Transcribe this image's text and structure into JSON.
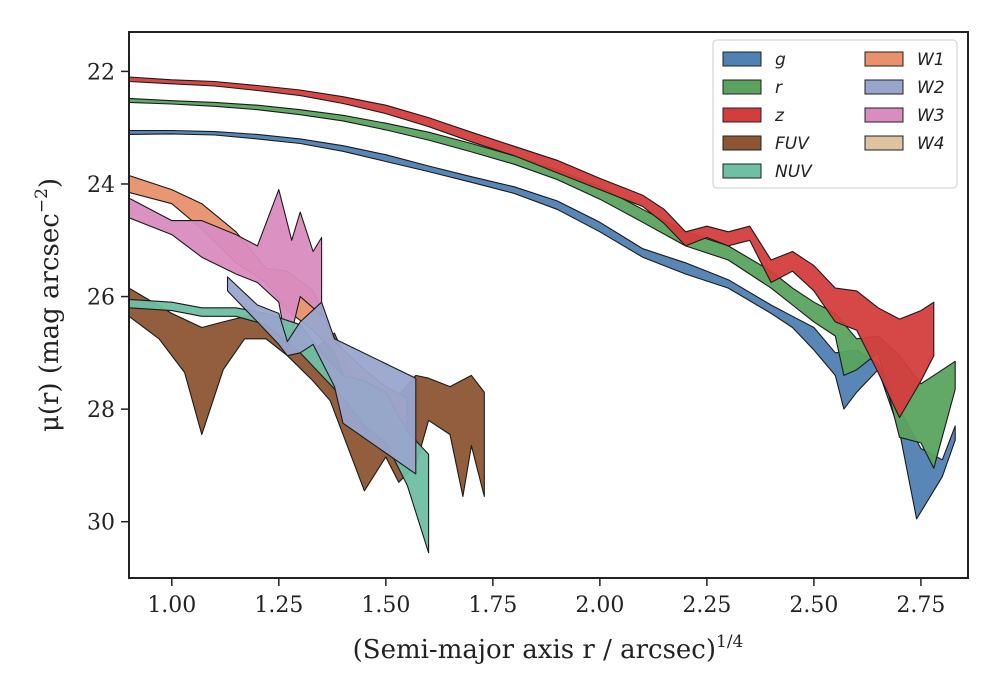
{
  "chart_data": {
    "type": "area",
    "title": "",
    "xlabel": "(Semi-major axis r / arcsec)",
    "xlabel_exponent": "1/4",
    "ylabel": "μ(r) (mag arcsec",
    "ylabel_exponent": "−2",
    "ylabel_close": ")",
    "xlim": [
      0.9,
      2.86
    ],
    "ylim": [
      31.0,
      21.3
    ],
    "y_inverted": true,
    "xticks": [
      1.0,
      1.25,
      1.5,
      1.75,
      2.0,
      2.25,
      2.5,
      2.75
    ],
    "xtick_labels": [
      "1.00",
      "1.25",
      "1.50",
      "1.75",
      "2.00",
      "2.25",
      "2.50",
      "2.75"
    ],
    "yticks": [
      22,
      24,
      26,
      28,
      30
    ],
    "ytick_labels": [
      "22",
      "24",
      "26",
      "28",
      "30"
    ],
    "grid": false,
    "legend_position": "top-right",
    "legend_columns": 2,
    "series": [
      {
        "name": "FUV",
        "color": "#8c5533",
        "upper": [
          [
            0.9,
            25.85
          ],
          [
            1.0,
            26.3
          ],
          [
            1.07,
            26.55
          ],
          [
            1.12,
            26.45
          ],
          [
            1.2,
            26.3
          ],
          [
            1.27,
            26.5
          ],
          [
            1.33,
            26.95
          ],
          [
            1.38,
            26.65
          ],
          [
            1.45,
            27.9
          ],
          [
            1.5,
            27.6
          ],
          [
            1.53,
            27.75
          ],
          [
            1.57,
            27.4
          ],
          [
            1.6,
            27.45
          ],
          [
            1.65,
            27.6
          ],
          [
            1.7,
            27.4
          ],
          [
            1.73,
            27.7
          ]
        ],
        "lower": [
          [
            0.9,
            26.35
          ],
          [
            0.97,
            26.75
          ],
          [
            1.03,
            27.35
          ],
          [
            1.07,
            28.45
          ],
          [
            1.12,
            27.3
          ],
          [
            1.17,
            26.75
          ],
          [
            1.22,
            26.75
          ],
          [
            1.27,
            27.05
          ],
          [
            1.33,
            27.5
          ],
          [
            1.37,
            27.85
          ],
          [
            1.45,
            29.45
          ],
          [
            1.5,
            28.85
          ],
          [
            1.53,
            29.3
          ],
          [
            1.57,
            29.0
          ],
          [
            1.6,
            28.2
          ],
          [
            1.65,
            28.45
          ],
          [
            1.68,
            29.55
          ],
          [
            1.7,
            28.65
          ],
          [
            1.73,
            29.55
          ]
        ]
      },
      {
        "name": "W1",
        "color": "#e8916c",
        "upper": [
          [
            0.9,
            23.85
          ],
          [
            1.0,
            24.1
          ],
          [
            1.07,
            24.35
          ],
          [
            1.15,
            24.85
          ],
          [
            1.22,
            25.5
          ],
          [
            1.27,
            25.55
          ],
          [
            1.33,
            25.9
          ],
          [
            1.38,
            26.8
          ],
          [
            1.45,
            27.3
          ],
          [
            1.5,
            27.6
          ],
          [
            1.55,
            27.8
          ]
        ],
        "lower": [
          [
            0.9,
            24.15
          ],
          [
            1.0,
            24.35
          ],
          [
            1.07,
            24.8
          ],
          [
            1.15,
            25.4
          ],
          [
            1.22,
            25.75
          ],
          [
            1.27,
            26.25
          ],
          [
            1.33,
            26.6
          ],
          [
            1.38,
            27.0
          ],
          [
            1.45,
            28.35
          ],
          [
            1.5,
            28.5
          ],
          [
            1.55,
            28.9
          ]
        ]
      },
      {
        "name": "W3",
        "color": "#d98cc0",
        "upper": [
          [
            0.9,
            24.25
          ],
          [
            1.0,
            24.65
          ],
          [
            1.07,
            24.65
          ],
          [
            1.15,
            24.9
          ],
          [
            1.2,
            25.1
          ],
          [
            1.25,
            24.1
          ],
          [
            1.28,
            25.0
          ],
          [
            1.3,
            24.5
          ],
          [
            1.33,
            25.2
          ],
          [
            1.35,
            24.95
          ]
        ],
        "lower": [
          [
            0.9,
            24.6
          ],
          [
            1.0,
            24.9
          ],
          [
            1.07,
            25.3
          ],
          [
            1.15,
            25.6
          ],
          [
            1.2,
            25.75
          ],
          [
            1.25,
            26.1
          ],
          [
            1.27,
            26.95
          ],
          [
            1.3,
            26.0
          ],
          [
            1.33,
            26.2
          ],
          [
            1.35,
            26.35
          ]
        ]
      },
      {
        "name": "NUV",
        "color": "#6fbfa4",
        "upper": [
          [
            0.9,
            26.05
          ],
          [
            1.0,
            26.1
          ],
          [
            1.07,
            26.2
          ],
          [
            1.15,
            26.2
          ],
          [
            1.22,
            26.3
          ],
          [
            1.3,
            26.5
          ],
          [
            1.35,
            27.0
          ],
          [
            1.4,
            27.4
          ],
          [
            1.45,
            27.5
          ],
          [
            1.5,
            27.7
          ],
          [
            1.55,
            28.4
          ],
          [
            1.6,
            28.8
          ]
        ],
        "lower": [
          [
            0.9,
            26.2
          ],
          [
            1.0,
            26.25
          ],
          [
            1.07,
            26.35
          ],
          [
            1.15,
            26.35
          ],
          [
            1.22,
            26.5
          ],
          [
            1.3,
            27.0
          ],
          [
            1.35,
            27.4
          ],
          [
            1.4,
            27.8
          ],
          [
            1.45,
            28.3
          ],
          [
            1.5,
            28.6
          ],
          [
            1.55,
            29.35
          ],
          [
            1.6,
            30.55
          ]
        ]
      },
      {
        "name": "W2",
        "color": "#99a5cc",
        "upper": [
          [
            1.13,
            25.65
          ],
          [
            1.2,
            26.15
          ],
          [
            1.25,
            26.3
          ],
          [
            1.27,
            26.8
          ],
          [
            1.3,
            26.45
          ],
          [
            1.35,
            26.1
          ],
          [
            1.38,
            26.75
          ],
          [
            1.57,
            27.45
          ]
        ],
        "lower": [
          [
            1.13,
            25.9
          ],
          [
            1.2,
            26.45
          ],
          [
            1.25,
            26.85
          ],
          [
            1.27,
            27.05
          ],
          [
            1.3,
            27.0
          ],
          [
            1.33,
            26.85
          ],
          [
            1.38,
            27.6
          ],
          [
            1.4,
            28.25
          ],
          [
            1.57,
            29.15
          ]
        ]
      },
      {
        "name": "g",
        "color": "#4f81b3",
        "upper": [
          [
            0.9,
            23.05
          ],
          [
            1.0,
            23.05
          ],
          [
            1.1,
            23.07
          ],
          [
            1.2,
            23.12
          ],
          [
            1.3,
            23.2
          ],
          [
            1.4,
            23.32
          ],
          [
            1.5,
            23.48
          ],
          [
            1.6,
            23.68
          ],
          [
            1.7,
            23.87
          ],
          [
            1.8,
            24.05
          ],
          [
            1.9,
            24.3
          ],
          [
            2.0,
            24.68
          ],
          [
            2.1,
            25.15
          ],
          [
            2.2,
            25.4
          ],
          [
            2.3,
            25.7
          ],
          [
            2.4,
            26.15
          ],
          [
            2.45,
            26.35
          ],
          [
            2.5,
            26.55
          ],
          [
            2.55,
            27.0
          ],
          [
            2.6,
            26.95
          ],
          [
            2.65,
            27.2
          ],
          [
            2.7,
            28.0
          ],
          [
            2.75,
            28.7
          ],
          [
            2.8,
            28.9
          ],
          [
            2.83,
            28.3
          ]
        ],
        "lower": [
          [
            0.9,
            23.12
          ],
          [
            1.0,
            23.11
          ],
          [
            1.1,
            23.13
          ],
          [
            1.2,
            23.2
          ],
          [
            1.3,
            23.28
          ],
          [
            1.4,
            23.42
          ],
          [
            1.5,
            23.6
          ],
          [
            1.6,
            23.78
          ],
          [
            1.7,
            23.97
          ],
          [
            1.8,
            24.17
          ],
          [
            1.9,
            24.45
          ],
          [
            2.0,
            24.85
          ],
          [
            2.1,
            25.3
          ],
          [
            2.2,
            25.6
          ],
          [
            2.3,
            25.85
          ],
          [
            2.4,
            26.3
          ],
          [
            2.45,
            26.55
          ],
          [
            2.5,
            26.95
          ],
          [
            2.55,
            27.4
          ],
          [
            2.57,
            28.0
          ],
          [
            2.6,
            27.7
          ],
          [
            2.65,
            27.3
          ],
          [
            2.7,
            28.4
          ],
          [
            2.74,
            29.95
          ],
          [
            2.8,
            29.2
          ],
          [
            2.83,
            28.55
          ]
        ]
      },
      {
        "name": "r",
        "color": "#5aa35e",
        "upper": [
          [
            0.9,
            22.48
          ],
          [
            1.0,
            22.52
          ],
          [
            1.1,
            22.55
          ],
          [
            1.2,
            22.6
          ],
          [
            1.3,
            22.68
          ],
          [
            1.4,
            22.78
          ],
          [
            1.5,
            22.92
          ],
          [
            1.6,
            23.08
          ],
          [
            1.7,
            23.28
          ],
          [
            1.8,
            23.5
          ],
          [
            1.9,
            23.75
          ],
          [
            2.0,
            24.05
          ],
          [
            2.1,
            24.45
          ],
          [
            2.2,
            24.85
          ],
          [
            2.3,
            25.1
          ],
          [
            2.4,
            25.55
          ],
          [
            2.45,
            25.85
          ],
          [
            2.5,
            26.1
          ],
          [
            2.55,
            26.3
          ],
          [
            2.6,
            26.75
          ],
          [
            2.65,
            26.7
          ],
          [
            2.7,
            27.05
          ],
          [
            2.75,
            27.55
          ],
          [
            2.78,
            27.4
          ],
          [
            2.83,
            27.15
          ]
        ],
        "lower": [
          [
            0.9,
            22.55
          ],
          [
            1.0,
            22.58
          ],
          [
            1.1,
            22.62
          ],
          [
            1.2,
            22.68
          ],
          [
            1.3,
            22.77
          ],
          [
            1.4,
            22.88
          ],
          [
            1.5,
            23.04
          ],
          [
            1.6,
            23.22
          ],
          [
            1.7,
            23.43
          ],
          [
            1.8,
            23.65
          ],
          [
            1.9,
            23.92
          ],
          [
            2.0,
            24.27
          ],
          [
            2.1,
            24.68
          ],
          [
            2.2,
            25.1
          ],
          [
            2.3,
            25.35
          ],
          [
            2.4,
            25.85
          ],
          [
            2.45,
            26.15
          ],
          [
            2.5,
            26.45
          ],
          [
            2.55,
            26.7
          ],
          [
            2.57,
            27.4
          ],
          [
            2.6,
            27.3
          ],
          [
            2.65,
            27.0
          ],
          [
            2.7,
            28.5
          ],
          [
            2.75,
            28.6
          ],
          [
            2.78,
            29.05
          ],
          [
            2.83,
            27.65
          ]
        ]
      },
      {
        "name": "z",
        "color": "#d43d3d",
        "upper": [
          [
            0.9,
            22.1
          ],
          [
            1.0,
            22.15
          ],
          [
            1.1,
            22.18
          ],
          [
            1.2,
            22.25
          ],
          [
            1.3,
            22.33
          ],
          [
            1.4,
            22.45
          ],
          [
            1.5,
            22.6
          ],
          [
            1.6,
            22.82
          ],
          [
            1.7,
            23.08
          ],
          [
            1.8,
            23.33
          ],
          [
            1.9,
            23.58
          ],
          [
            2.0,
            23.9
          ],
          [
            2.1,
            24.2
          ],
          [
            2.15,
            24.45
          ],
          [
            2.2,
            24.85
          ],
          [
            2.25,
            24.75
          ],
          [
            2.3,
            24.85
          ],
          [
            2.35,
            24.75
          ],
          [
            2.4,
            25.35
          ],
          [
            2.45,
            25.2
          ],
          [
            2.5,
            25.45
          ],
          [
            2.55,
            25.85
          ],
          [
            2.6,
            25.9
          ],
          [
            2.65,
            26.2
          ],
          [
            2.7,
            26.4
          ],
          [
            2.75,
            26.25
          ],
          [
            2.78,
            26.1
          ]
        ],
        "lower": [
          [
            0.9,
            22.18
          ],
          [
            1.0,
            22.22
          ],
          [
            1.1,
            22.26
          ],
          [
            1.2,
            22.34
          ],
          [
            1.3,
            22.43
          ],
          [
            1.4,
            22.57
          ],
          [
            1.5,
            22.75
          ],
          [
            1.6,
            22.98
          ],
          [
            1.7,
            23.25
          ],
          [
            1.8,
            23.5
          ],
          [
            1.9,
            23.8
          ],
          [
            2.0,
            24.1
          ],
          [
            2.1,
            24.4
          ],
          [
            2.15,
            24.7
          ],
          [
            2.2,
            25.1
          ],
          [
            2.25,
            24.95
          ],
          [
            2.3,
            25.1
          ],
          [
            2.35,
            25.0
          ],
          [
            2.4,
            25.75
          ],
          [
            2.45,
            25.55
          ],
          [
            2.5,
            25.9
          ],
          [
            2.55,
            26.45
          ],
          [
            2.6,
            26.6
          ],
          [
            2.65,
            27.35
          ],
          [
            2.7,
            28.15
          ],
          [
            2.75,
            27.5
          ],
          [
            2.78,
            27.05
          ]
        ]
      }
    ],
    "legend": [
      {
        "name": "g",
        "color": "#4f81b3"
      },
      {
        "name": "r",
        "color": "#5aa35e"
      },
      {
        "name": "z",
        "color": "#d43d3d"
      },
      {
        "name": "FUV",
        "color": "#8c5533"
      },
      {
        "name": "NUV",
        "color": "#6fbfa4"
      },
      {
        "name": "W1",
        "color": "#e8916c"
      },
      {
        "name": "W2",
        "color": "#99a5cc"
      },
      {
        "name": "W3",
        "color": "#d98cc0"
      },
      {
        "name": "W4",
        "color": "#dec3a1"
      }
    ]
  }
}
